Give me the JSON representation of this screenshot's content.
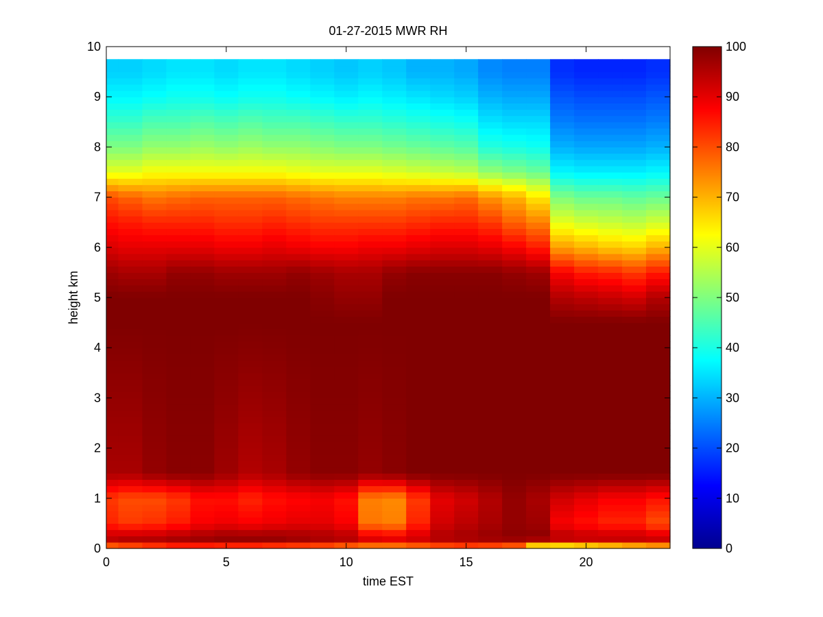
{
  "chart_data": {
    "type": "heatmap",
    "title": "01-27-2015 MWR RH",
    "xlabel": "time EST",
    "ylabel": "height km",
    "xlim": [
      0,
      23.5
    ],
    "ylim": [
      0,
      10
    ],
    "x_ticks": [
      "0",
      "5",
      "10",
      "15",
      "20"
    ],
    "y_ticks": [
      "0",
      "1",
      "2",
      "3",
      "4",
      "5",
      "6",
      "7",
      "8",
      "9",
      "10"
    ],
    "colorbar": {
      "colormap": "jet",
      "range": [
        0,
        100
      ],
      "ticks": [
        "0",
        "10",
        "20",
        "30",
        "40",
        "50",
        "60",
        "70",
        "80",
        "90",
        "100"
      ]
    },
    "time_bins": [
      0,
      1,
      2,
      3,
      4,
      5,
      6,
      7,
      8,
      9,
      10,
      11,
      12,
      13,
      14,
      15,
      16,
      17,
      18,
      19,
      20,
      21,
      22,
      23
    ],
    "height_profile_rows": [
      {
        "z": 9.5,
        "rh": [
          33,
          33,
          34,
          35,
          35,
          34,
          35,
          35,
          34,
          33,
          32,
          33,
          32,
          30,
          30,
          29,
          26,
          25,
          25,
          17,
          16,
          16,
          16,
          17
        ]
      },
      {
        "z": 9.0,
        "rh": [
          37,
          37,
          38,
          39,
          39,
          38,
          39,
          39,
          38,
          37,
          36,
          37,
          36,
          35,
          34,
          33,
          30,
          29,
          29,
          21,
          20,
          20,
          20,
          21
        ]
      },
      {
        "z": 8.5,
        "rh": [
          43,
          43,
          45,
          45,
          46,
          45,
          46,
          45,
          45,
          44,
          43,
          43,
          42,
          41,
          40,
          39,
          35,
          34,
          34,
          25,
          24,
          24,
          24,
          25
        ]
      },
      {
        "z": 8.0,
        "rh": [
          50,
          50,
          52,
          52,
          53,
          52,
          53,
          52,
          52,
          51,
          50,
          50,
          49,
          48,
          47,
          46,
          41,
          40,
          39,
          30,
          29,
          29,
          29,
          30
        ]
      },
      {
        "z": 7.5,
        "rh": [
          60,
          60,
          62,
          62,
          62,
          62,
          62,
          62,
          61,
          60,
          60,
          60,
          59,
          58,
          57,
          56,
          52,
          50,
          48,
          37,
          36,
          36,
          36,
          37
        ]
      },
      {
        "z": 7.0,
        "rh": [
          80,
          78,
          76,
          77,
          78,
          78,
          78,
          78,
          77,
          76,
          75,
          75,
          75,
          76,
          76,
          77,
          73,
          70,
          65,
          50,
          48,
          48,
          47,
          48
        ]
      },
      {
        "z": 6.5,
        "rh": [
          86,
          85,
          84,
          84,
          84,
          83,
          83,
          84,
          83,
          82,
          82,
          82,
          82,
          83,
          84,
          84,
          82,
          78,
          75,
          60,
          58,
          57,
          56,
          58
        ]
      },
      {
        "z": 6.0,
        "rh": [
          91,
          90,
          90,
          90,
          90,
          89,
          89,
          90,
          89,
          88,
          88,
          89,
          89,
          90,
          91,
          91,
          90,
          88,
          85,
          72,
          70,
          68,
          67,
          70
        ]
      },
      {
        "z": 5.5,
        "rh": [
          97,
          96,
          96,
          98,
          98,
          97,
          97,
          97,
          98,
          97,
          96,
          96,
          98,
          99,
          99,
          99,
          99,
          98,
          97,
          88,
          85,
          84,
          82,
          85
        ]
      },
      {
        "z": 5.0,
        "rh": [
          100,
          100,
          100,
          100,
          100,
          100,
          100,
          100,
          100,
          99,
          98,
          98,
          100,
          100,
          100,
          100,
          100,
          100,
          100,
          95,
          94,
          93,
          92,
          95
        ]
      },
      {
        "z": 4.5,
        "rh": [
          100,
          100,
          100,
          100,
          100,
          100,
          100,
          100,
          100,
          100,
          100,
          100,
          100,
          100,
          100,
          100,
          100,
          100,
          100,
          100,
          100,
          100,
          100,
          100
        ]
      },
      {
        "z": 1.5,
        "rh": [
          96,
          96,
          98,
          99,
          99,
          97,
          95,
          96,
          98,
          99,
          99,
          98,
          99,
          100,
          100,
          100,
          100,
          100,
          100,
          100,
          100,
          100,
          100,
          100
        ]
      },
      {
        "z": 1.0,
        "rh": [
          82,
          80,
          80,
          82,
          86,
          86,
          84,
          86,
          87,
          88,
          86,
          75,
          74,
          82,
          90,
          92,
          95,
          98,
          96,
          92,
          90,
          88,
          88,
          86
        ]
      },
      {
        "z": 0.5,
        "rh": [
          84,
          82,
          83,
          85,
          88,
          89,
          88,
          89,
          90,
          90,
          88,
          76,
          75,
          84,
          92,
          94,
          96,
          98,
          97,
          88,
          86,
          84,
          84,
          80
        ]
      },
      {
        "z": 0.2,
        "rh": [
          95,
          96,
          96,
          97,
          98,
          99,
          99,
          99,
          98,
          97,
          96,
          92,
          91,
          93,
          96,
          97,
          98,
          99,
          99,
          96,
          95,
          95,
          95,
          94
        ]
      },
      {
        "z": 0.05,
        "rh": [
          78,
          80,
          82,
          84,
          84,
          83,
          83,
          82,
          81,
          80,
          78,
          76,
          76,
          78,
          80,
          81,
          80,
          78,
          65,
          64,
          66,
          68,
          70,
          72
        ]
      }
    ]
  }
}
